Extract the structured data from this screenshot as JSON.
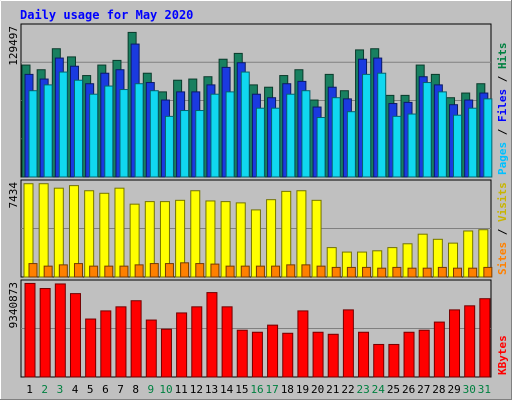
{
  "chart_data": {
    "type": "bar",
    "title": "Daily usage for May 2020",
    "categories": [
      "1",
      "2",
      "3",
      "4",
      "5",
      "6",
      "7",
      "8",
      "9",
      "10",
      "11",
      "12",
      "13",
      "14",
      "15",
      "16",
      "17",
      "18",
      "19",
      "20",
      "21",
      "22",
      "23",
      "24",
      "25",
      "26",
      "27",
      "28",
      "29",
      "30",
      "31"
    ],
    "weekend_days": [
      "2",
      "3",
      "9",
      "10",
      "16",
      "17",
      "23",
      "24",
      "30",
      "31"
    ],
    "panels": [
      {
        "id": "hits-files-pages",
        "ymax_label": "129497",
        "ylim": [
          0,
          129497
        ],
        "legend": [
          {
            "text": "Pages",
            "color": "#00c0ff"
          },
          {
            "text": "Files",
            "color": "#0000ff"
          },
          {
            "text": "Hits",
            "color": "#008040"
          }
        ],
        "separator": " / ",
        "series": [
          {
            "name": "Hits",
            "color": "#188060",
            "values": [
              96000,
              92000,
              110000,
              103000,
              87000,
              96000,
              100000,
              124000,
              89000,
              73000,
              83000,
              84000,
              86000,
              101000,
              106000,
              79000,
              77000,
              87000,
              92000,
              66000,
              88000,
              74000,
              109000,
              110000,
              70000,
              70000,
              96000,
              88000,
              68000,
              72000,
              80000
            ]
          },
          {
            "name": "Files",
            "color": "#1a3ae0",
            "values": [
              88000,
              84000,
              102000,
              95000,
              80000,
              89000,
              92000,
              114000,
              81000,
              66000,
              73000,
              73000,
              79000,
              94000,
              98000,
              71000,
              68000,
              80000,
              82000,
              60000,
              77000,
              67000,
              101000,
              102000,
              63000,
              64000,
              86000,
              79000,
              62000,
              66000,
              72000
            ]
          },
          {
            "name": "Pages",
            "color": "#10d8f0",
            "values": [
              74000,
              79000,
              90000,
              83000,
              71000,
              78000,
              75000,
              80000,
              74000,
              52000,
              57000,
              57000,
              71000,
              73000,
              90000,
              59000,
              59000,
              71000,
              74000,
              51000,
              68000,
              56000,
              88000,
              89000,
              52000,
              54000,
              81000,
              73000,
              53000,
              59000,
              67000
            ]
          }
        ]
      },
      {
        "id": "visits-sites",
        "ymax_label": "7434",
        "ylim": [
          0,
          7434
        ],
        "legend": [
          {
            "text": "Sites",
            "color": "#ff8000"
          },
          {
            "text": "Visits",
            "color": "#c8b400"
          }
        ],
        "separator": " / ",
        "series": [
          {
            "name": "Visits",
            "color": "#ffff00",
            "values": [
              7300,
              7300,
              6950,
              7150,
              6750,
              6550,
              6950,
              5700,
              5900,
              5900,
              6000,
              6750,
              5950,
              5900,
              5800,
              5250,
              6050,
              6700,
              6750,
              6000,
              2300,
              1950,
              1950,
              2050,
              2300,
              2600,
              3350,
              2950,
              2650,
              3600,
              3700
            ]
          },
          {
            "name": "Sites",
            "color": "#ff8000",
            "values": [
              1050,
              850,
              950,
              1050,
              850,
              850,
              850,
              950,
              1050,
              1050,
              1110,
              1050,
              1010,
              850,
              850,
              850,
              850,
              950,
              950,
              850,
              750,
              750,
              750,
              690,
              750,
              690,
              690,
              750,
              690,
              690,
              750
            ]
          }
        ]
      },
      {
        "id": "kbytes",
        "ymax_label": "9340873",
        "ylim": [
          0,
          9340873
        ],
        "legend": [
          {
            "text": "KBytes",
            "color": "#ff0000"
          }
        ],
        "separator": "",
        "series": [
          {
            "name": "KBytes",
            "color": "#ff0000",
            "values": [
              9200000,
              8700000,
              9150000,
              8200000,
              5700000,
              6500000,
              6900000,
              7500000,
              5600000,
              4700000,
              6300000,
              6900000,
              8300000,
              6900000,
              4600000,
              4400000,
              5100000,
              4300000,
              6500000,
              4400000,
              4200000,
              6600000,
              4400000,
              3200000,
              3200000,
              4400000,
              4600000,
              5400000,
              6600000,
              7000000,
              7700000
            ]
          }
        ]
      }
    ]
  }
}
